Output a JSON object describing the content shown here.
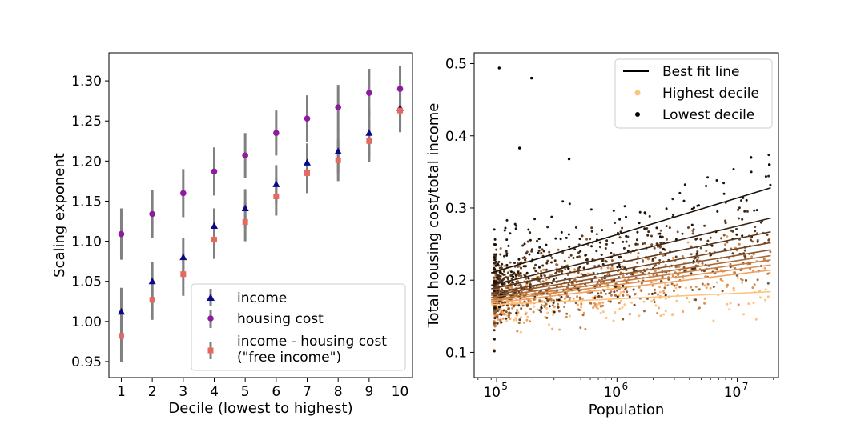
{
  "chart_data": [
    {
      "type": "scatter",
      "xlabel": "Decile (lowest to highest)",
      "ylabel": "Scaling exponent",
      "xlim": [
        0.6,
        10.4
      ],
      "ylim": [
        0.93,
        1.335
      ],
      "xticks": [
        1,
        2,
        3,
        4,
        5,
        6,
        7,
        8,
        9,
        10
      ],
      "yticks": [
        0.95,
        1.0,
        1.05,
        1.1,
        1.15,
        1.2,
        1.25,
        1.3
      ],
      "ytick_labels": [
        "0.95",
        "1.00",
        "1.05",
        "1.10",
        "1.15",
        "1.20",
        "1.25",
        "1.30"
      ],
      "legend_position": "lower-right",
      "error_bar_color": "#808080",
      "x": [
        1,
        2,
        3,
        4,
        5,
        6,
        7,
        8,
        9,
        10
      ],
      "series": [
        {
          "name": "income",
          "marker": "triangle",
          "color": "#0d0887",
          "values": [
            1.012,
            1.05,
            1.08,
            1.119,
            1.141,
            1.171,
            1.198,
            1.212,
            1.235,
            1.266
          ],
          "error": [
            0.03,
            0.024,
            0.024,
            0.022,
            0.024,
            0.024,
            0.024,
            0.028,
            0.03,
            0.03
          ]
        },
        {
          "name": "housing cost",
          "marker": "circle",
          "color": "#8e1a9f",
          "values": [
            1.109,
            1.134,
            1.16,
            1.187,
            1.207,
            1.235,
            1.253,
            1.267,
            1.285,
            1.29
          ],
          "error": [
            0.032,
            0.03,
            0.03,
            0.03,
            0.028,
            0.028,
            0.029,
            0.028,
            0.03,
            0.029
          ]
        },
        {
          "name": "income - housing cost\n(\"free income\")",
          "marker": "square",
          "color": "#e8685d",
          "values": [
            0.982,
            1.027,
            1.059,
            1.102,
            1.124,
            1.156,
            1.185,
            1.201,
            1.225,
            1.263
          ],
          "error": [
            0.032,
            0.025,
            0.027,
            0.024,
            0.024,
            0.024,
            0.025,
            0.026,
            0.026,
            0.026
          ]
        }
      ],
      "legend": {
        "line1": "income",
        "line2": "housing cost",
        "line3a": "income - housing cost",
        "line3b": "(\"free income\")"
      }
    },
    {
      "type": "scatter",
      "xlabel": "Population",
      "ylabel": "Total housing cost/total income",
      "x_scale": "log",
      "xlim": [
        65000,
        22000000
      ],
      "ylim": [
        0.065,
        0.515
      ],
      "xticks": [
        100000,
        1000000,
        10000000
      ],
      "xtick_labels": [
        "10^5",
        "10^6",
        "10^7"
      ],
      "yticks": [
        0.1,
        0.2,
        0.3,
        0.4,
        0.5
      ],
      "ytick_labels": [
        "0.1",
        "0.2",
        "0.3",
        "0.4",
        "0.5"
      ],
      "legend_position": "top-right",
      "legend": {
        "best_fit": "Best fit line",
        "highest": "Highest decile",
        "lowest": "Lowest decile"
      },
      "colors": {
        "highest": "#fdc27e",
        "lowest": "#000000",
        "best_fit": "#000000"
      },
      "population_range": [
        90000,
        19000000
      ],
      "deciles": [
        {
          "decile": 1,
          "color": "#1a1109",
          "fit": [
            0.21,
            0.328
          ],
          "center": 0.238,
          "spread": 0.06
        },
        {
          "decile": 2,
          "color": "#3a2514",
          "fit": [
            0.193,
            0.286
          ],
          "center": 0.222,
          "spread": 0.05
        },
        {
          "decile": 3,
          "color": "#55361e",
          "fit": [
            0.188,
            0.267
          ],
          "center": 0.215,
          "spread": 0.045
        },
        {
          "decile": 4,
          "color": "#6e4627",
          "fit": [
            0.182,
            0.252
          ],
          "center": 0.208,
          "spread": 0.042
        },
        {
          "decile": 5,
          "color": "#8a5831",
          "fit": [
            0.179,
            0.242
          ],
          "center": 0.203,
          "spread": 0.04
        },
        {
          "decile": 6,
          "color": "#a66a3b",
          "fit": [
            0.176,
            0.234
          ],
          "center": 0.198,
          "spread": 0.038
        },
        {
          "decile": 7,
          "color": "#c27c45",
          "fit": [
            0.173,
            0.228
          ],
          "center": 0.193,
          "spread": 0.036
        },
        {
          "decile": 8,
          "color": "#db8f52",
          "fit": [
            0.171,
            0.221
          ],
          "center": 0.188,
          "spread": 0.035
        },
        {
          "decile": 9,
          "color": "#f0a463",
          "fit": [
            0.168,
            0.214
          ],
          "center": 0.183,
          "spread": 0.034
        },
        {
          "decile": 10,
          "color": "#fdc27e",
          "fit": [
            0.166,
            0.184
          ],
          "center": 0.172,
          "spread": 0.03
        }
      ],
      "outliers": [
        {
          "x": 105000,
          "y": 0.494
        },
        {
          "x": 195000,
          "y": 0.48
        },
        {
          "x": 155000,
          "y": 0.383
        },
        {
          "x": 400000,
          "y": 0.368
        },
        {
          "x": 13000000,
          "y": 0.37
        },
        {
          "x": 18500000,
          "y": 0.36
        }
      ]
    }
  ]
}
